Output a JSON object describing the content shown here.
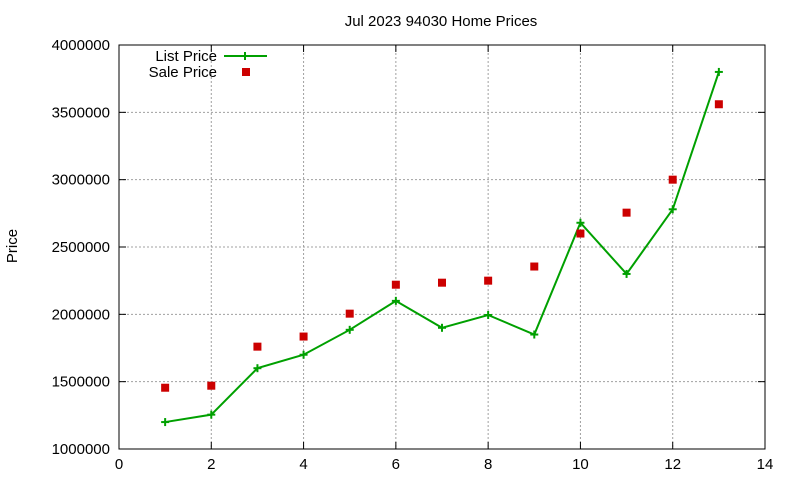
{
  "chart_data": {
    "type": "line",
    "title": "Jul 2023 94030 Home Prices",
    "xlabel": "",
    "ylabel": "Price",
    "xlim": [
      0,
      14
    ],
    "ylim": [
      1000000,
      4000000
    ],
    "xticks": [
      0,
      2,
      4,
      6,
      8,
      10,
      12,
      14
    ],
    "yticks": [
      1000000,
      1500000,
      2000000,
      2500000,
      3000000,
      3500000,
      4000000
    ],
    "xtick_labels": [
      "0",
      "2",
      "4",
      "6",
      "8",
      "10",
      "12",
      "14"
    ],
    "ytick_labels": [
      "1000000",
      "1500000",
      "2000000",
      "2500000",
      "3000000",
      "3500000",
      "4000000"
    ],
    "grid": true,
    "legend_position": "top-left",
    "series": [
      {
        "name": "List Price",
        "style": "line-with-plus-markers",
        "color": "#00a000",
        "x": [
          1,
          2,
          3,
          4,
          5,
          6,
          7,
          8,
          9,
          10,
          11,
          12,
          13
        ],
        "y": [
          1200000,
          1255000,
          1600000,
          1700000,
          1885000,
          2100000,
          1900000,
          1995000,
          1850000,
          2680000,
          2300000,
          2780000,
          3800000
        ]
      },
      {
        "name": "Sale Price",
        "style": "square-points",
        "color": "#cc0000",
        "x": [
          1,
          2,
          3,
          4,
          5,
          6,
          7,
          8,
          9,
          10,
          11,
          12,
          13
        ],
        "y": [
          1455000,
          1470000,
          1760000,
          1835000,
          2005000,
          2220000,
          2235000,
          2250000,
          2355000,
          2600000,
          2755000,
          3000000,
          3560000
        ]
      }
    ]
  }
}
